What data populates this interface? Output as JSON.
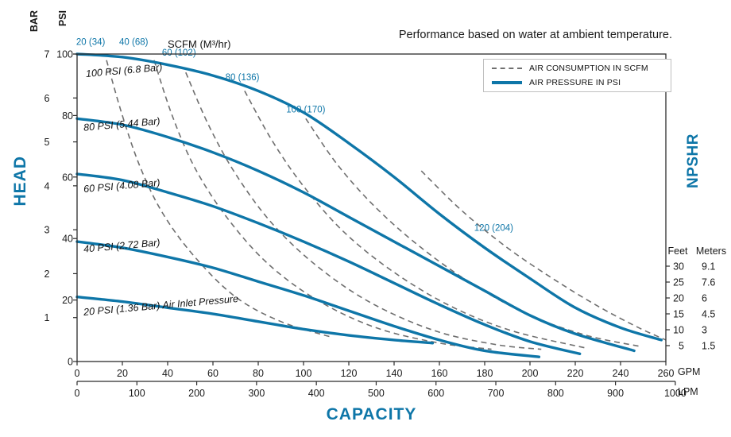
{
  "chart_data": {
    "type": "line",
    "title": "Performance based on water at ambient temperature.",
    "xlabel": "CAPACITY",
    "ylabel": "HEAD",
    "y2label": "NPSHR",
    "colors": {
      "curve_blue": "#0e76a8",
      "air_dash": "#6f6f6f",
      "label_blue": "#0e76a8",
      "axis": "#2b2b2b"
    },
    "legend": {
      "items": [
        {
          "label": "AIR CONSUMPTION IN SCFM",
          "style": "dashed"
        },
        {
          "label": "AIR PRESSURE IN PSI",
          "style": "solid"
        }
      ]
    },
    "axes": {
      "bar_unit": "BAR",
      "psi_unit": "PSI",
      "gpm_unit": "GPM",
      "lpm_unit": "LPM",
      "feet_unit": "Feet",
      "meters_unit": "Meters",
      "scfm_title": "SCFM (M³/hr)",
      "bar_max": 7,
      "psi_max": 100,
      "gpm_max": 260,
      "lpm_per_gpm": 3.7854,
      "bar_ticks": [
        7,
        6,
        5,
        4,
        3,
        2,
        1
      ],
      "psi_ticks": [
        100,
        80,
        60,
        40,
        20,
        0
      ],
      "gpm_ticks": [
        0,
        20,
        40,
        60,
        80,
        100,
        120,
        140,
        160,
        180,
        200,
        220,
        240,
        260
      ],
      "lpm_ticks": [
        0,
        100,
        200,
        300,
        400,
        500,
        600,
        700,
        800,
        900,
        1000
      ],
      "npshr_feet": [
        30,
        25,
        20,
        15,
        10,
        5
      ],
      "npshr_meters": [
        "9.1",
        "7.6",
        "6",
        "4.5",
        "3",
        "1.5"
      ]
    },
    "pressure_curves": [
      {
        "label": "100 PSI (6.8 Bar)",
        "label_at": [
          4,
          92.5
        ],
        "points": [
          [
            0,
            100
          ],
          [
            20,
            99
          ],
          [
            40,
            96.5
          ],
          [
            60,
            93
          ],
          [
            80,
            88
          ],
          [
            100,
            81
          ],
          [
            120,
            71
          ],
          [
            140,
            60
          ],
          [
            160,
            48
          ],
          [
            180,
            37
          ],
          [
            200,
            27
          ],
          [
            220,
            17.5
          ],
          [
            240,
            11
          ],
          [
            258,
            7
          ]
        ]
      },
      {
        "label": "80 PSI (5.44 Bar)",
        "label_at": [
          3,
          75
        ],
        "points": [
          [
            0,
            79
          ],
          [
            20,
            77
          ],
          [
            40,
            73
          ],
          [
            60,
            68
          ],
          [
            80,
            62
          ],
          [
            100,
            55
          ],
          [
            120,
            47
          ],
          [
            140,
            39
          ],
          [
            160,
            31
          ],
          [
            180,
            23
          ],
          [
            200,
            15
          ],
          [
            220,
            9
          ],
          [
            246,
            3.5
          ]
        ]
      },
      {
        "label": "60 PSI (4.08 Bar)",
        "label_at": [
          3,
          55
        ],
        "points": [
          [
            0,
            61
          ],
          [
            20,
            59
          ],
          [
            40,
            55
          ],
          [
            60,
            50.5
          ],
          [
            80,
            45
          ],
          [
            100,
            39
          ],
          [
            120,
            32.5
          ],
          [
            140,
            25.5
          ],
          [
            160,
            18.5
          ],
          [
            180,
            12
          ],
          [
            200,
            6.5
          ],
          [
            222,
            2.5
          ]
        ]
      },
      {
        "label": "40 PSI (2.72 Bar)",
        "label_at": [
          3,
          35.5
        ],
        "points": [
          [
            0,
            39
          ],
          [
            20,
            37
          ],
          [
            40,
            34
          ],
          [
            60,
            30.5
          ],
          [
            80,
            26
          ],
          [
            100,
            21.5
          ],
          [
            120,
            16.5
          ],
          [
            140,
            11.5
          ],
          [
            160,
            7
          ],
          [
            180,
            3.5
          ],
          [
            204,
            1.5
          ]
        ]
      },
      {
        "label": "20 PSI (1.36 Bar) Air Inlet Pressure",
        "label_at": [
          3,
          15
        ],
        "points": [
          [
            0,
            21
          ],
          [
            20,
            19.5
          ],
          [
            40,
            17.5
          ],
          [
            60,
            15.5
          ],
          [
            80,
            13
          ],
          [
            100,
            10.5
          ],
          [
            120,
            8.5
          ],
          [
            140,
            7
          ],
          [
            157,
            6
          ]
        ]
      }
    ],
    "air_curves": [
      {
        "label": "20 (34)",
        "label_at": [
          6,
          103
        ],
        "points": [
          [
            13,
            98
          ],
          [
            20,
            80
          ],
          [
            28,
            63
          ],
          [
            38,
            48
          ],
          [
            52,
            34
          ],
          [
            70,
            21
          ],
          [
            90,
            13
          ],
          [
            112,
            8
          ]
        ]
      },
      {
        "label": "40 (68)",
        "label_at": [
          25,
          103
        ],
        "points": [
          [
            34,
            98
          ],
          [
            42,
            80
          ],
          [
            52,
            63
          ],
          [
            66,
            47
          ],
          [
            84,
            32
          ],
          [
            106,
            20
          ],
          [
            132,
            11
          ],
          [
            160,
            6
          ],
          [
            183,
            4
          ]
        ]
      },
      {
        "label": "60 (102)",
        "label_at": [
          45,
          99.5
        ],
        "points": [
          [
            48,
            94
          ],
          [
            58,
            77
          ],
          [
            70,
            61
          ],
          [
            86,
            45
          ],
          [
            106,
            31
          ],
          [
            130,
            19
          ],
          [
            158,
            10
          ],
          [
            185,
            5.5
          ],
          [
            205,
            4
          ]
        ]
      },
      {
        "label": "80 (136)",
        "label_at": [
          73,
          91.5
        ],
        "points": [
          [
            74,
            88
          ],
          [
            86,
            72
          ],
          [
            100,
            57
          ],
          [
            118,
            42
          ],
          [
            140,
            29
          ],
          [
            165,
            18
          ],
          [
            192,
            10
          ],
          [
            224,
            4.5
          ]
        ]
      },
      {
        "label": "100 (170)",
        "label_at": [
          101,
          81
        ],
        "points": [
          [
            101,
            79
          ],
          [
            115,
            64
          ],
          [
            132,
            50
          ],
          [
            152,
            37
          ],
          [
            175,
            25
          ],
          [
            200,
            15
          ],
          [
            225,
            8.5
          ],
          [
            248,
            5
          ]
        ]
      },
      {
        "label": "120 (204)",
        "label_at": [
          184,
          42.5
        ],
        "points": [
          [
            152,
            62
          ],
          [
            170,
            49
          ],
          [
            190,
            37
          ],
          [
            210,
            27
          ],
          [
            230,
            18
          ],
          [
            248,
            11
          ],
          [
            260,
            7
          ]
        ]
      }
    ]
  }
}
